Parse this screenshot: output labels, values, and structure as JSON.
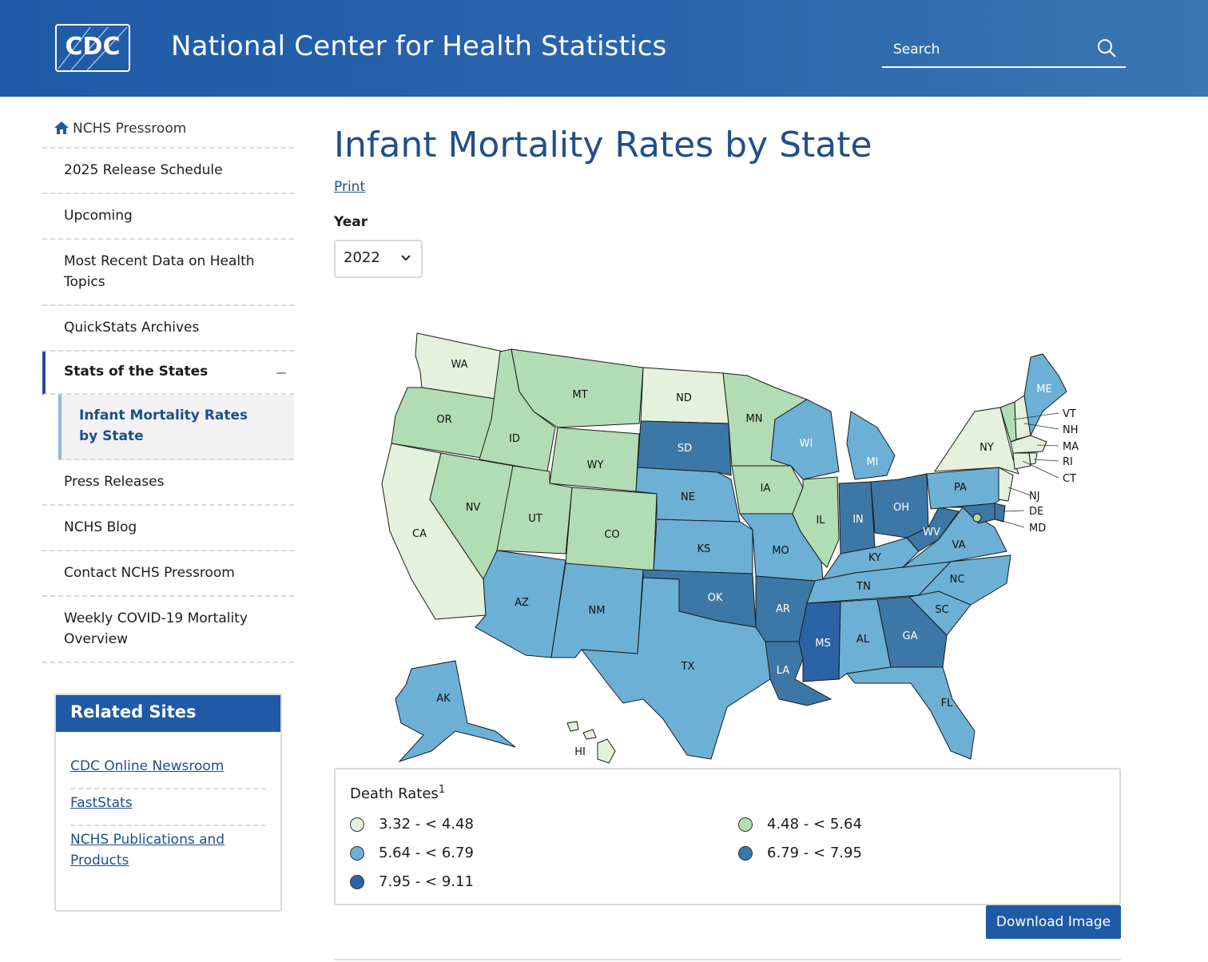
{
  "header": {
    "logo_text": "CDC",
    "title": "National Center for Health Statistics",
    "search_placeholder": "Search"
  },
  "sidebar": {
    "items": [
      {
        "label": "NCHS Pressroom"
      },
      {
        "label": "2025 Release Schedule"
      },
      {
        "label": "Upcoming"
      },
      {
        "label": "Most Recent Data on Health Topics"
      },
      {
        "label": "QuickStats Archives"
      },
      {
        "label": "Stats of the States"
      },
      {
        "label": "Infant Mortality Rates by State"
      },
      {
        "label": "Press Releases"
      },
      {
        "label": "NCHS Blog"
      },
      {
        "label": "Contact NCHS Pressroom"
      },
      {
        "label": "Weekly COVID-19 Mortality Overview"
      }
    ]
  },
  "related": {
    "title": "Related Sites",
    "links": [
      "CDC Online Newsroom",
      "FastStats",
      "NCHS Publications and Products"
    ]
  },
  "main": {
    "title": "Infant Mortality Rates by State",
    "print_label": "Print",
    "year_label": "Year",
    "year_value": "2022"
  },
  "map": {
    "colors": {
      "c1": "#e3f1dd",
      "c2": "#b2dcb3",
      "c3": "#6cb0d6",
      "c4": "#3d77a6",
      "c5": "#2b63a6"
    },
    "states": {
      "WA": "c1",
      "OR": "c2",
      "CA": "c1",
      "ID": "c2",
      "NV": "c2",
      "MT": "c2",
      "WY": "c2",
      "UT": "c2",
      "CO": "c2",
      "AZ": "c3",
      "NM": "c3",
      "ND": "c1",
      "SD": "c4",
      "NE": "c3",
      "KS": "c3",
      "OK": "c4",
      "TX": "c3",
      "MN": "c2",
      "IA": "c2",
      "MO": "c3",
      "AR": "c4",
      "LA": "c4",
      "WI": "c3",
      "IL": "c2",
      "MI": "c3",
      "IN": "c4",
      "OH": "c4",
      "KY": "c3",
      "TN": "c3",
      "MS": "c5",
      "AL": "c3",
      "GA": "c4",
      "FL": "c3",
      "SC": "c3",
      "NC": "c3",
      "VA": "c3",
      "WV": "c4",
      "PA": "c3",
      "NY": "c1",
      "ME": "c3",
      "AK": "c3",
      "HI": "c1",
      "VT": "c2",
      "NH": "c1",
      "MA": "c1",
      "RI": "c1",
      "CT": "c1",
      "NJ": "c1",
      "DE": "c4",
      "MD": "c4",
      "DC": "c2"
    },
    "labels": [
      "WA",
      "OR",
      "CA",
      "ID",
      "NV",
      "MT",
      "WY",
      "UT",
      "CO",
      "AZ",
      "NM",
      "ND",
      "SD",
      "NE",
      "KS",
      "OK",
      "TX",
      "MN",
      "IA",
      "MO",
      "AR",
      "LA",
      "WI",
      "IL",
      "MI",
      "IN",
      "OH",
      "KY",
      "TN",
      "MS",
      "AL",
      "GA",
      "FL",
      "SC",
      "NC",
      "VA",
      "WV",
      "PA",
      "NY",
      "ME",
      "AK",
      "HI"
    ],
    "callouts": [
      "VT",
      "NH",
      "MA",
      "RI",
      "CT",
      "NJ",
      "DE",
      "MD"
    ]
  },
  "legend": {
    "title": "Death Rates",
    "footnote": "1",
    "items": [
      {
        "label": "3.32 - < 4.48",
        "color": "#e3f1dd"
      },
      {
        "label": "4.48 - < 5.64",
        "color": "#b2dcb3"
      },
      {
        "label": "5.64 - < 6.79",
        "color": "#6cb0d6"
      },
      {
        "label": "6.79 - < 7.95",
        "color": "#3d77a6"
      },
      {
        "label": "7.95 - < 9.11",
        "color": "#2b63a6"
      }
    ]
  },
  "download_label": "Download Image"
}
